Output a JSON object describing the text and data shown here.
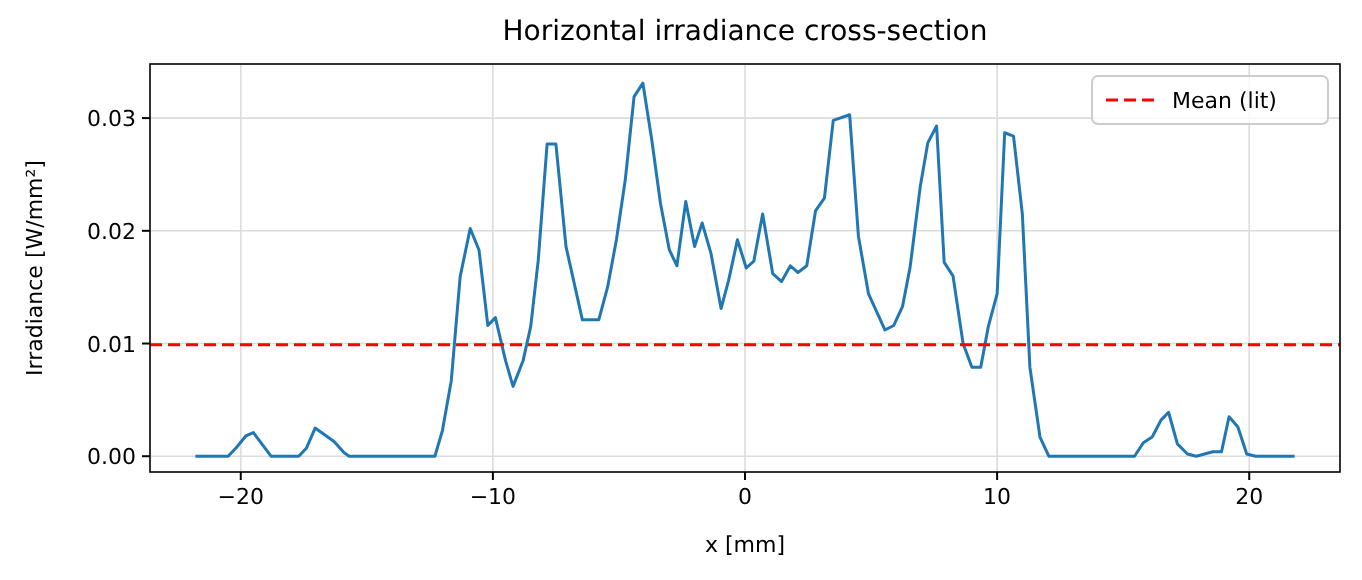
{
  "chart_data": {
    "type": "line",
    "title": "Horizontal irradiance cross-section",
    "xlabel": "x [mm]",
    "ylabel": "Irradiance [W/mm²]",
    "x": [
      -21.8,
      -20.5,
      -20.2,
      -19.8,
      -19.5,
      -18.8,
      -17.7,
      -17.4,
      -17.05,
      -16.3,
      -15.9,
      -15.7,
      -12.3,
      -12.0,
      -11.65,
      -11.3,
      -10.9,
      -10.55,
      -10.2,
      -9.9,
      -9.5,
      -9.2,
      -8.8,
      -8.5,
      -8.2,
      -7.85,
      -7.5,
      -7.1,
      -6.8,
      -6.45,
      -5.8,
      -5.45,
      -5.1,
      -4.75,
      -4.4,
      -4.05,
      -3.7,
      -3.35,
      -3.0,
      -2.7,
      -2.35,
      -2.0,
      -1.7,
      -1.35,
      -0.95,
      -0.65,
      -0.3,
      0.05,
      0.35,
      0.7,
      1.1,
      1.45,
      1.8,
      2.1,
      2.45,
      2.8,
      3.15,
      3.5,
      4.15,
      4.5,
      4.9,
      5.55,
      5.9,
      6.25,
      6.55,
      6.95,
      7.25,
      7.6,
      7.9,
      8.25,
      8.65,
      9.0,
      9.35,
      9.65,
      10.0,
      10.3,
      10.65,
      11.0,
      11.3,
      11.7,
      12.05,
      15.45,
      15.8,
      16.15,
      16.5,
      16.8,
      17.15,
      17.55,
      17.9,
      18.55,
      18.9,
      19.2,
      19.55,
      19.9,
      20.25,
      21.8
    ],
    "series": [
      {
        "color": "#1f77b4",
        "values": [
          0,
          0,
          0.0007,
          0.0018,
          0.0021,
          0,
          0,
          0.0007,
          0.0025,
          0.0013,
          0.0003,
          0,
          0,
          0.0023,
          0.0067,
          0.0159,
          0.0202,
          0.0183,
          0.0116,
          0.0123,
          0.0085,
          0.0062,
          0.0085,
          0.0115,
          0.0174,
          0.0277,
          0.0277,
          0.0186,
          0.0156,
          0.0121,
          0.0121,
          0.015,
          0.0192,
          0.0245,
          0.0319,
          0.0331,
          0.0281,
          0.0224,
          0.0183,
          0.0169,
          0.0226,
          0.0186,
          0.0207,
          0.018,
          0.0131,
          0.0156,
          0.0192,
          0.0167,
          0.0173,
          0.0215,
          0.0162,
          0.0155,
          0.0169,
          0.0163,
          0.0169,
          0.0218,
          0.0229,
          0.0298,
          0.0303,
          0.0195,
          0.0144,
          0.0112,
          0.0116,
          0.0133,
          0.0168,
          0.0239,
          0.0278,
          0.0293,
          0.0172,
          0.016,
          0.01,
          0.0079,
          0.0079,
          0.0115,
          0.0144,
          0.0287,
          0.0284,
          0.0215,
          0.0079,
          0.0017,
          0,
          0,
          0.0012,
          0.0017,
          0.0032,
          0.0039,
          0.0011,
          0.0002,
          0,
          0.0004,
          0.0004,
          0.0035,
          0.0026,
          0.0002,
          0,
          0
        ]
      }
    ],
    "xlim": [
      -23.6,
      23.6
    ],
    "xticks": [
      {
        "value": -20,
        "label": "−20"
      },
      {
        "value": -10,
        "label": "−10"
      },
      0,
      10,
      20
    ],
    "ylim": [
      -0.0014,
      0.0348
    ],
    "yticks": [
      {
        "value": 0,
        "label": "0.00"
      },
      {
        "value": 0.01,
        "label": "0.01"
      },
      {
        "value": 0.02,
        "label": "0.02"
      },
      {
        "value": 0.03,
        "label": "0.03"
      }
    ],
    "ref_lines": [
      {
        "axis": "y",
        "value": 0.0099,
        "label": "Mean (lit)",
        "color": "#ff0000",
        "line_style": "dashed"
      }
    ],
    "grid": true,
    "legend": "top right",
    "marker": "none",
    "line_style": "solid"
  }
}
